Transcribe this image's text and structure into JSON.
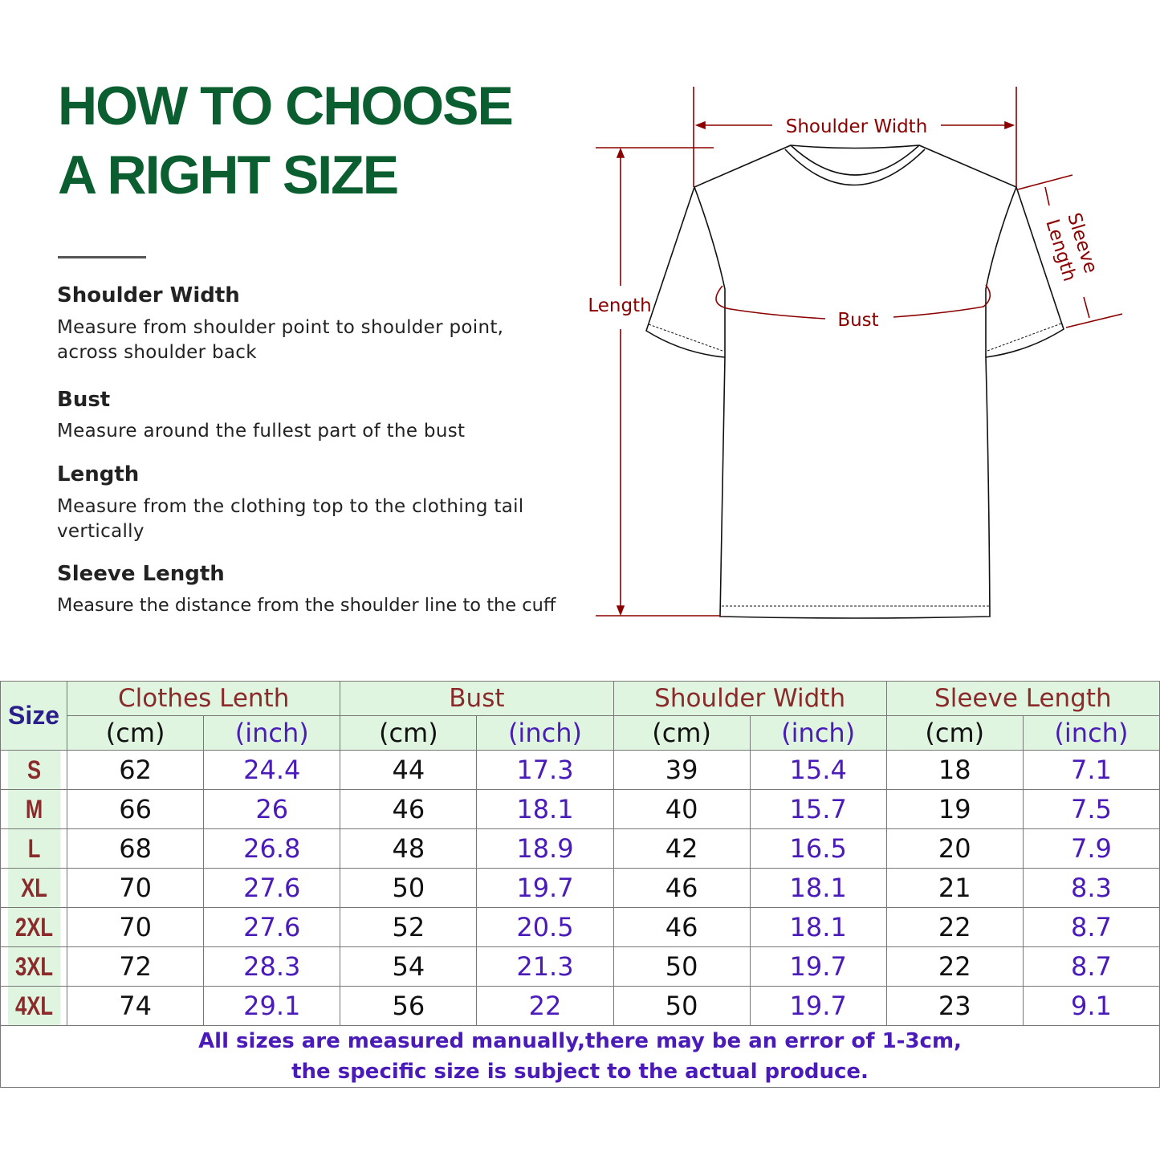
{
  "heading": {
    "line1": "HOW TO CHOOSE",
    "line2": "A RIGHT SIZE"
  },
  "guides": [
    {
      "title": "Shoulder Width",
      "desc": "Measure from shoulder point to shoulder point, across shoulder back"
    },
    {
      "title": "Bust",
      "desc": "Measure around the fullest part of the bust"
    },
    {
      "title": "Length",
      "desc": "Measure from the clothing top to the clothing tail vertically"
    },
    {
      "title": "Sleeve Length",
      "desc": "Measure the distance from the shoulder line to the cuff"
    }
  ],
  "diagram": {
    "shoulder": "Shoulder Width",
    "length": "Length",
    "bust": "Bust",
    "sleeve1": "Sleeve",
    "sleeve2": "Length",
    "line_color": "#8b0000"
  },
  "table": {
    "size_header": "Size",
    "groups": [
      "Clothes Lenth",
      "Bust",
      "Shoulder Width",
      "Sleeve Length"
    ],
    "units": {
      "cm": "(cm)",
      "inch": "(inch)"
    },
    "rows": [
      {
        "size": "S",
        "v": [
          "62",
          "24.4",
          "44",
          "17.3",
          "39",
          "15.4",
          "18",
          "7.1"
        ]
      },
      {
        "size": "M",
        "v": [
          "66",
          "26",
          "46",
          "18.1",
          "40",
          "15.7",
          "19",
          "7.5"
        ]
      },
      {
        "size": "L",
        "v": [
          "68",
          "26.8",
          "48",
          "18.9",
          "42",
          "16.5",
          "20",
          "7.9"
        ]
      },
      {
        "size": "XL",
        "v": [
          "70",
          "27.6",
          "50",
          "19.7",
          "46",
          "18.1",
          "21",
          "8.3"
        ]
      },
      {
        "size": "2XL",
        "v": [
          "70",
          "27.6",
          "52",
          "20.5",
          "46",
          "18.1",
          "22",
          "8.7"
        ]
      },
      {
        "size": "3XL",
        "v": [
          "72",
          "28.3",
          "54",
          "21.3",
          "50",
          "19.7",
          "22",
          "8.7"
        ]
      },
      {
        "size": "4XL",
        "v": [
          "74",
          "29.1",
          "56",
          "22",
          "50",
          "19.7",
          "23",
          "9.1"
        ]
      }
    ],
    "note1": "All sizes are measured manually,there may be an error of 1-3cm,",
    "note2": "the specific size is subject to the actual produce."
  },
  "colors": {
    "title": "#0b5e2f",
    "header_bg": "#dff5df",
    "inch": "#4a1bb8",
    "group": "#8b2a2a"
  }
}
